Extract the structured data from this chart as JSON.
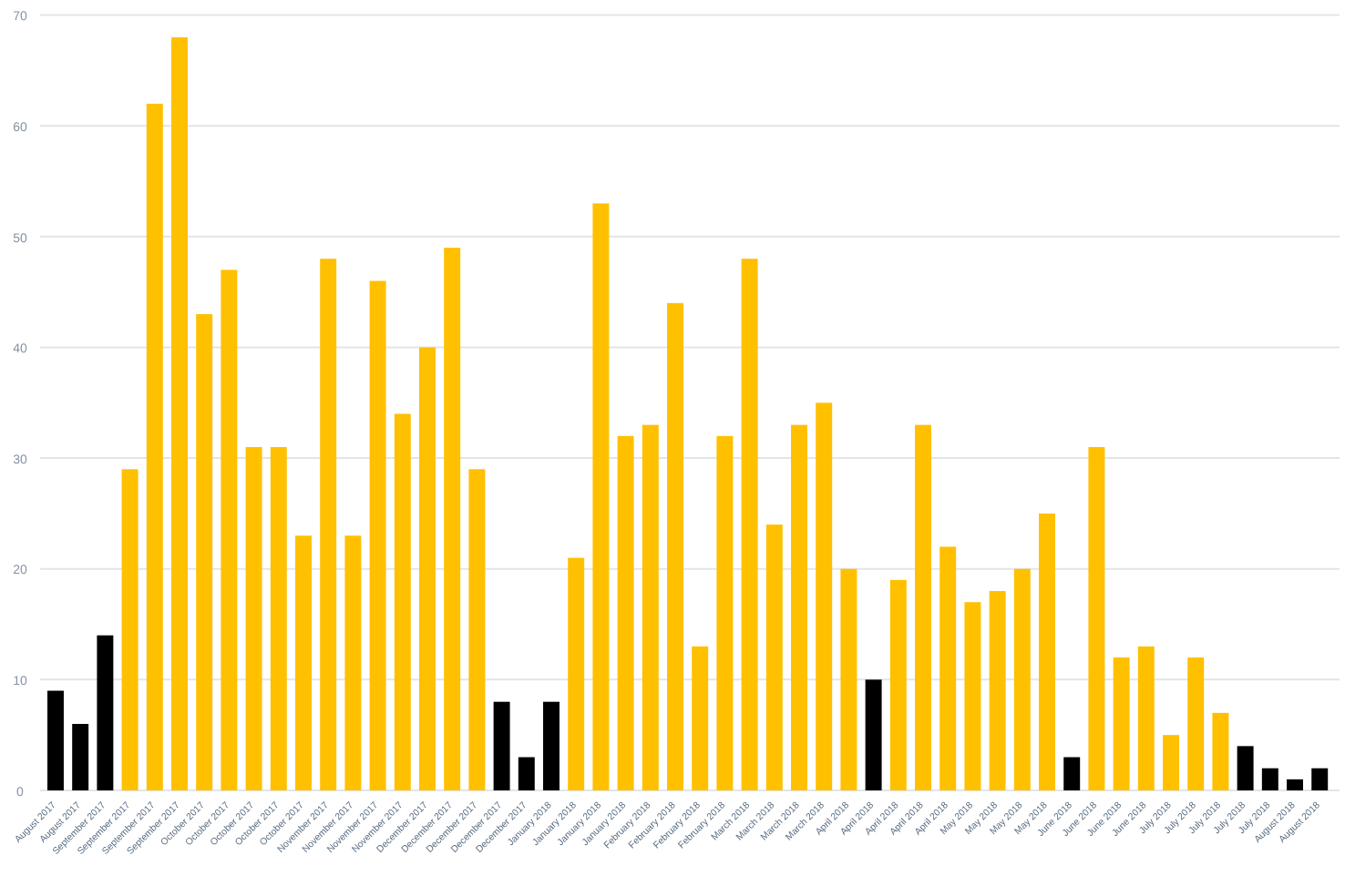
{
  "chart_data": {
    "type": "bar",
    "categories": [
      "August 2017",
      "August 2017",
      "September 2017",
      "September 2017",
      "September 2017",
      "September 2017",
      "October 2017",
      "October 2017",
      "October 2017",
      "October 2017",
      "October 2017",
      "November 2017",
      "November 2017",
      "November 2017",
      "November 2017",
      "December 2017",
      "December 2017",
      "December 2017",
      "December 2017",
      "December 2017",
      "January 2018",
      "January 2018",
      "January 2018",
      "January 2018",
      "February 2018",
      "February 2018",
      "February 2018",
      "February 2018",
      "March 2018",
      "March 2018",
      "March 2018",
      "March 2018",
      "April 2018",
      "April 2018",
      "April 2018",
      "April 2018",
      "April 2018",
      "May 2018",
      "May 2018",
      "May 2018",
      "May 2018",
      "June 2018",
      "June 2018",
      "June 2018",
      "June 2018",
      "July 2018",
      "July 2018",
      "July 2018",
      "July 2018",
      "July 2018",
      "August 2018",
      "August 2018"
    ],
    "values": [
      9,
      6,
      14,
      29,
      62,
      68,
      43,
      47,
      31,
      31,
      23,
      48,
      23,
      46,
      34,
      40,
      49,
      29,
      8,
      3,
      8,
      21,
      53,
      32,
      33,
      44,
      13,
      32,
      48,
      24,
      33,
      35,
      20,
      10,
      19,
      33,
      22,
      17,
      18,
      20,
      25,
      3,
      31,
      12,
      13,
      5,
      12,
      7,
      4,
      2,
      1,
      2
    ],
    "colors": [
      "#000000",
      "#000000",
      "#000000",
      "#ffc000",
      "#ffc000",
      "#ffc000",
      "#ffc000",
      "#ffc000",
      "#ffc000",
      "#ffc000",
      "#ffc000",
      "#ffc000",
      "#ffc000",
      "#ffc000",
      "#ffc000",
      "#ffc000",
      "#ffc000",
      "#ffc000",
      "#000000",
      "#000000",
      "#000000",
      "#ffc000",
      "#ffc000",
      "#ffc000",
      "#ffc000",
      "#ffc000",
      "#ffc000",
      "#ffc000",
      "#ffc000",
      "#ffc000",
      "#ffc000",
      "#ffc000",
      "#ffc000",
      "#000000",
      "#ffc000",
      "#ffc000",
      "#ffc000",
      "#ffc000",
      "#ffc000",
      "#ffc000",
      "#ffc000",
      "#000000",
      "#ffc000",
      "#ffc000",
      "#ffc000",
      "#ffc000",
      "#ffc000",
      "#ffc000",
      "#000000",
      "#000000",
      "#000000",
      "#000000"
    ],
    "ylim": [
      0,
      70
    ],
    "yticks": [
      0,
      10,
      20,
      30,
      40,
      50,
      60,
      70
    ],
    "grid": "y"
  }
}
